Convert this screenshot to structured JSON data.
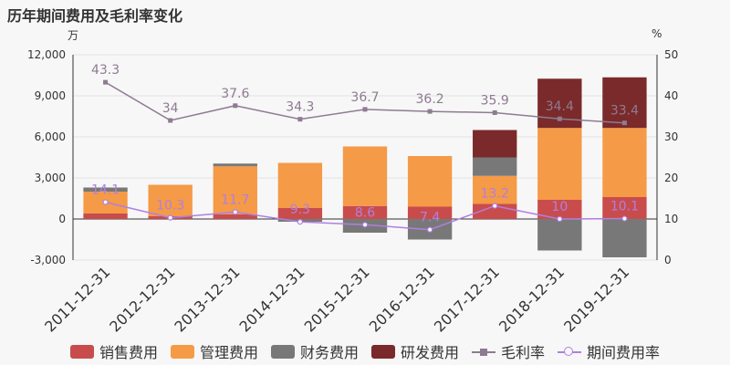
{
  "title": "历年期间费用及毛利率变化",
  "left_unit": "万",
  "right_unit": "%",
  "chart_data": {
    "type": "bar",
    "stacked": true,
    "categories": [
      "2011-12-31",
      "2012-12-31",
      "2013-12-31",
      "2014-12-31",
      "2015-12-31",
      "2016-12-31",
      "2017-12-31",
      "2018-12-31",
      "2019-12-31"
    ],
    "y_left": {
      "min": -3000,
      "max": 12000,
      "ticks": [
        "-3,000",
        "0",
        "3,000",
        "6,000",
        "9,000",
        "12,000"
      ]
    },
    "y_right": {
      "min": 0,
      "max": 50,
      "ticks": [
        "0",
        "10",
        "20",
        "30",
        "40",
        "50"
      ]
    },
    "series": [
      {
        "name": "销售费用",
        "color": "#c94c4c",
        "values": [
          400,
          200,
          350,
          800,
          950,
          900,
          1100,
          1400,
          1600
        ]
      },
      {
        "name": "管理费用",
        "color": "#f59a47",
        "values": [
          1600,
          2300,
          3500,
          3300,
          4350,
          3700,
          2050,
          5250,
          5050
        ]
      },
      {
        "name": "财务费用",
        "color": "#787878",
        "values": [
          300,
          0,
          200,
          -200,
          -1000,
          -1500,
          1350,
          -2300,
          -2800
        ]
      },
      {
        "name": "研发费用",
        "color": "#7a2a2a",
        "values": [
          0,
          0,
          0,
          0,
          0,
          0,
          2000,
          3600,
          3700
        ]
      }
    ],
    "lines": [
      {
        "name": "毛利率",
        "color": "#8e7b91",
        "marker": "square",
        "values": [
          43.3,
          34,
          37.6,
          34.3,
          36.7,
          36.2,
          35.9,
          34.4,
          33.4
        ],
        "labels": [
          "43.3",
          "34",
          "37.6",
          "34.3",
          "36.7",
          "36.2",
          "35.9",
          "34.4",
          "33.4"
        ]
      },
      {
        "name": "期间费用率",
        "color": "#b07fe0",
        "marker": "circle",
        "values": [
          14.1,
          10.3,
          11.7,
          9.3,
          8.6,
          7.4,
          13.2,
          10,
          10.1
        ],
        "labels": [
          "14.1",
          "10.3",
          "11.7",
          "9.3",
          "8.6",
          "7.4",
          "13.2",
          "10",
          "10.1"
        ]
      }
    ]
  }
}
